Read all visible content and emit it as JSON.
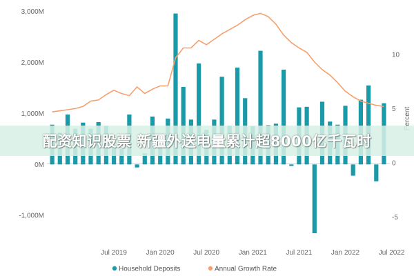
{
  "banner": {
    "text": "配资知识股票 新疆外送电量累计超8000亿千瓦时"
  },
  "chart_data": {
    "type": "bar+line",
    "title": "",
    "legend_position": "bottom",
    "grid": false,
    "x": {
      "start": "2018-11",
      "tick_labels": [
        {
          "label": "Jul 2019",
          "date": "2019-07"
        },
        {
          "label": "Jan 2020",
          "date": "2020-01"
        },
        {
          "label": "Jul 2020",
          "date": "2020-07"
        },
        {
          "label": "Jan 2021",
          "date": "2021-01"
        },
        {
          "label": "Jul 2021",
          "date": "2021-07"
        },
        {
          "label": "Jan 2022",
          "date": "2022-01"
        },
        {
          "label": "Jul 2022",
          "date": "2022-07"
        }
      ]
    },
    "y_left": {
      "label": "",
      "range": [
        -1350,
        3050
      ],
      "tick_values": [
        -1000,
        0,
        1000,
        2000,
        3000
      ],
      "tick_labels": [
        "-1,000M",
        "0M",
        "1,000M",
        "2,000M",
        "3,000M"
      ]
    },
    "y_right": {
      "label": "Percent",
      "range": [
        -6.5,
        14.2
      ],
      "tick_values": [
        -5,
        0,
        5,
        10
      ],
      "tick_labels": [
        "-5",
        "0",
        "5",
        "10"
      ]
    },
    "series": [
      {
        "name": "Household Deposits",
        "type": "bar",
        "axis": "left",
        "color": "#1a9aa8",
        "values": [
          780,
          620,
          980,
          700,
          820,
          700,
          830,
          760,
          340,
          300,
          980,
          -60,
          220,
          940,
          460,
          900,
          2960,
          1520,
          880,
          1980,
          680,
          880,
          1720,
          760,
          1900,
          1300,
          750,
          2230,
          770,
          800,
          1860,
          -30,
          1120,
          1130,
          -1350,
          1230,
          840,
          780,
          1150,
          -220,
          1270,
          1550,
          -330,
          1200
        ]
      },
      {
        "name": "Annual Growth Rate",
        "type": "line",
        "axis": "right",
        "color": "#f5a06e",
        "values": [
          4.7,
          4.8,
          4.9,
          5.0,
          5.2,
          5.7,
          5.8,
          6.3,
          6.7,
          6.4,
          6.2,
          7.0,
          6.4,
          6.8,
          7.1,
          7.1,
          9.7,
          10.6,
          10.6,
          11.3,
          10.9,
          11.4,
          11.9,
          12.3,
          12.7,
          13.2,
          13.6,
          13.8,
          13.5,
          12.8,
          11.8,
          11.1,
          10.6,
          10.2,
          9.3,
          8.6,
          8.1,
          7.4,
          6.6,
          6.1,
          5.7,
          5.5,
          5.3,
          5.2
        ]
      }
    ]
  }
}
